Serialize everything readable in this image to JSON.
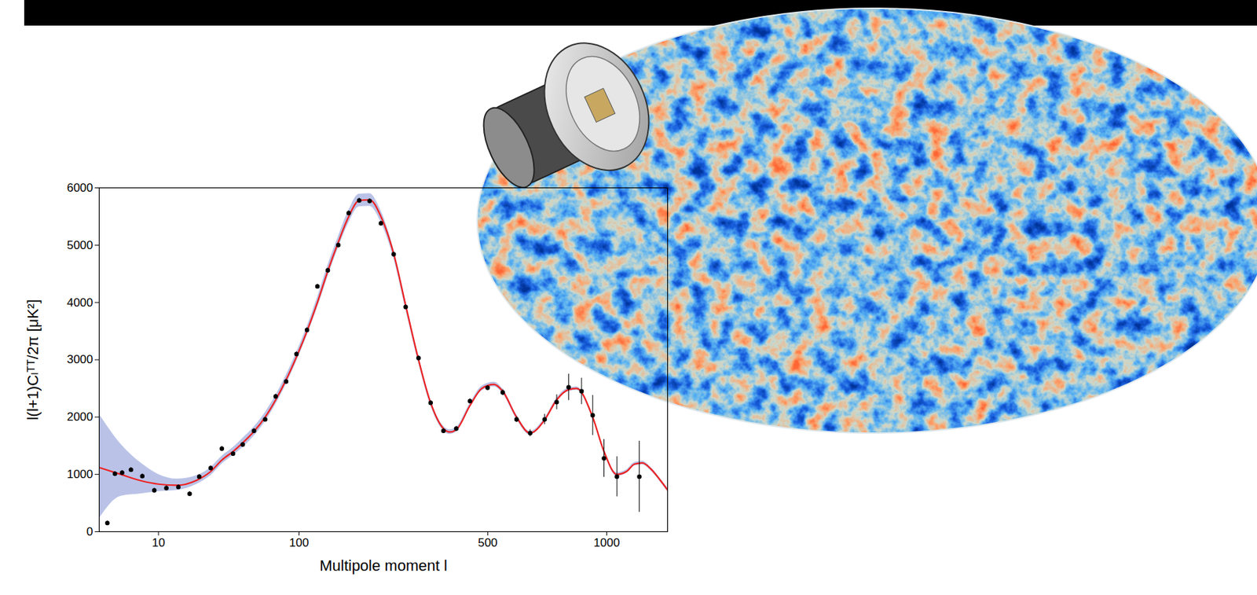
{
  "chart_data": {
    "type": "line",
    "x_label": "Multipole moment l",
    "y_label": "l(l+1)Cₗᵀᵀ/2π [μK²]",
    "xlim": [
      1.3,
      1350
    ],
    "ylim": [
      0,
      6000
    ],
    "xticks": [
      10,
      100,
      500,
      1000
    ],
    "yticks": [
      0,
      1000,
      2000,
      3000,
      4000,
      5000,
      6000
    ],
    "grid": false,
    "series": [
      {
        "type": "area",
        "color": "#b3bde4",
        "x": [
          1.3,
          3.24,
          6.22,
          10,
          15.3,
          22.9,
          29.3,
          35.3,
          42.1,
          48.6,
          57.0,
          66.2,
          75.7,
          86.0,
          97.1,
          109.3,
          122.3,
          136.3,
          151.4,
          167.5,
          184.8,
          203.1,
          224.3,
          249.9,
          275.6,
          305.2,
          334.7,
          368.1,
          385.5,
          403.6,
          443.8,
          481,
          521,
          551,
          600.7,
          652.6,
          710.9,
          762,
          815,
          852,
          929,
          986,
          1054,
          1106,
          1152,
          1197,
          1245,
          1304,
          1350
        ],
        "lower": [
          230,
          620,
          660,
          700,
          720,
          830,
          980,
          1180,
          1330,
          1470,
          1670,
          1920,
          2220,
          2570,
          2970,
          3420,
          3910,
          4450,
          4950,
          5390,
          5670,
          5680,
          5400,
          4770,
          3880,
          2940,
          2200,
          1760,
          1700,
          1740,
          2160,
          2460,
          2530,
          2410,
          1960,
          1690,
          1920,
          2270,
          2450,
          2470,
          1970,
          1370,
          970,
          1020,
          1150,
          1170,
          1070,
          870,
          700
        ],
        "upper": [
          2050,
          1530,
          1200,
          1000,
          920,
          980,
          1120,
          1320,
          1470,
          1630,
          1830,
          2080,
          2380,
          2730,
          3130,
          3580,
          4090,
          4650,
          5150,
          5610,
          5890,
          5900,
          5600,
          4930,
          4020,
          3060,
          2300,
          1840,
          1780,
          1820,
          2240,
          2540,
          2610,
          2490,
          2040,
          1750,
          1980,
          2330,
          2510,
          2530,
          2030,
          1430,
          1030,
          1080,
          1210,
          1230,
          1130,
          930,
          760
        ]
      },
      {
        "type": "line",
        "color": "#ee2222",
        "line_style": "solid",
        "x": [
          1.3,
          3.24,
          6.22,
          10,
          15.3,
          22.9,
          29.3,
          35.3,
          42.1,
          48.6,
          57.0,
          66.2,
          75.7,
          86.0,
          97.1,
          109.3,
          122.3,
          136.3,
          151.4,
          167.5,
          184.8,
          203.1,
          224.3,
          249.9,
          275.6,
          305.2,
          334.7,
          368.1,
          385.5,
          403.6,
          443.8,
          481,
          521,
          551,
          600.7,
          652.6,
          710.9,
          762,
          815,
          852,
          929,
          986,
          1054,
          1106,
          1152,
          1197,
          1245,
          1304,
          1350
        ],
        "values": [
          1120,
          1000,
          890,
          830,
          810,
          900,
          1050,
          1250,
          1400,
          1550,
          1750,
          2000,
          2300,
          2650,
          3050,
          3500,
          4000,
          4550,
          5050,
          5500,
          5780,
          5790,
          5500,
          4850,
          3950,
          3000,
          2250,
          1800,
          1740,
          1780,
          2200,
          2500,
          2570,
          2450,
          2000,
          1720,
          1950,
          2300,
          2480,
          2500,
          2000,
          1400,
          1000,
          1050,
          1180,
          1200,
          1100,
          900,
          730
        ]
      },
      {
        "type": "scatter",
        "color": "#000000",
        "marker": "circle",
        "x": [
          1.9,
          2.6,
          3.4,
          4.6,
          6.5,
          9.0,
          12.1,
          15.8,
          19.9,
          23.9,
          29.3,
          35.3,
          42.1,
          48.6,
          57.0,
          66.2,
          75.7,
          86.0,
          97.1,
          109.3,
          122.3,
          136.3,
          151.4,
          167.5,
          184.8,
          203.1,
          224.3,
          249.9,
          275.6,
          305.2,
          334.7,
          368.1,
          403.6,
          443.8,
          499.6,
          551,
          600.7,
          652.6,
          710.9,
          762,
          815,
          875,
          929,
          986,
          1054,
          1179
        ],
        "values": [
          150,
          1010,
          1030,
          1080,
          970,
          720,
          760,
          780,
          660,
          960,
          1110,
          1450,
          1360,
          1520,
          1760,
          1960,
          2360,
          2620,
          3100,
          3520,
          4280,
          4560,
          5000,
          5560,
          5780,
          5770,
          5380,
          4840,
          3920,
          3030,
          2250,
          1760,
          1800,
          2280,
          2510,
          2430,
          1960,
          1720,
          1960,
          2260,
          2520,
          2450,
          2030,
          1280,
          960,
          960
        ],
        "errors": [
          40,
          40,
          40,
          40,
          40,
          40,
          40,
          40,
          40,
          40,
          40,
          40,
          40,
          40,
          40,
          40,
          40,
          40,
          40,
          40,
          40,
          40,
          40,
          40,
          40,
          40,
          40,
          40,
          40,
          40,
          40,
          40,
          40,
          40,
          40,
          50,
          50,
          60,
          90,
          130,
          230,
          230,
          350,
          330,
          350,
          620
        ]
      }
    ]
  }
}
